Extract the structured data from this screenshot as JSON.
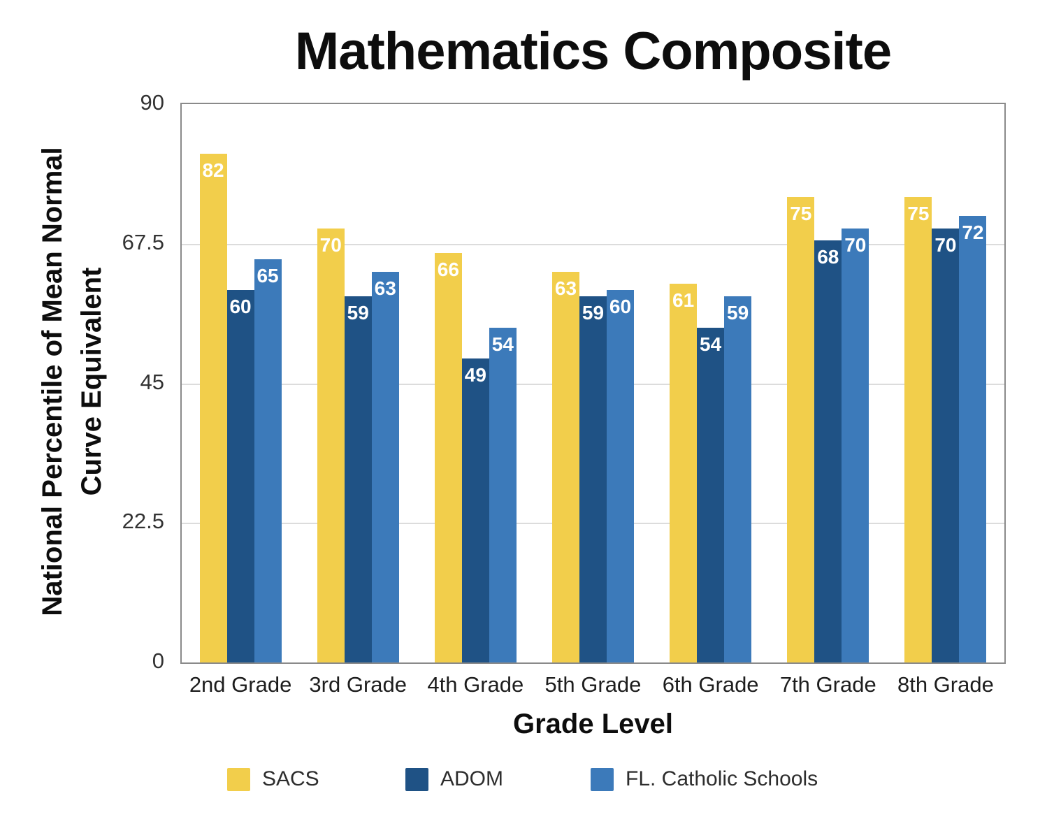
{
  "chart_data": {
    "type": "bar",
    "title": "Mathematics Composite",
    "xlabel": "Grade Level",
    "ylabel": "National Percentile of Mean Normal Curve Equivalent",
    "ylabel_lines": [
      "National Percentile of Mean Normal",
      "Curve Equivalent"
    ],
    "categories": [
      "2nd Grade",
      "3rd Grade",
      "4th Grade",
      "5th Grade",
      "6th Grade",
      "7th Grade",
      "8th Grade"
    ],
    "series": [
      {
        "name": "SACS",
        "color": "#F2CE4B",
        "values": [
          82,
          70,
          66,
          63,
          61,
          75,
          75
        ]
      },
      {
        "name": "ADOM",
        "color": "#1F5285",
        "values": [
          60,
          59,
          49,
          59,
          54,
          68,
          70
        ]
      },
      {
        "name": "FL. Catholic Schools",
        "color": "#3C7ABA",
        "values": [
          65,
          63,
          54,
          60,
          59,
          70,
          72
        ]
      }
    ],
    "ylim": [
      0,
      90
    ],
    "yticks": [
      0,
      22.5,
      45,
      67.5,
      90
    ],
    "grid": "horizontal",
    "value_labels": "inside-top, white bold",
    "legend_position": "bottom",
    "colors": {
      "background": "#ffffff",
      "gridline": "#dcdcdc",
      "plot_border": "#8a8a8a",
      "text": "#0d0d0d"
    }
  }
}
